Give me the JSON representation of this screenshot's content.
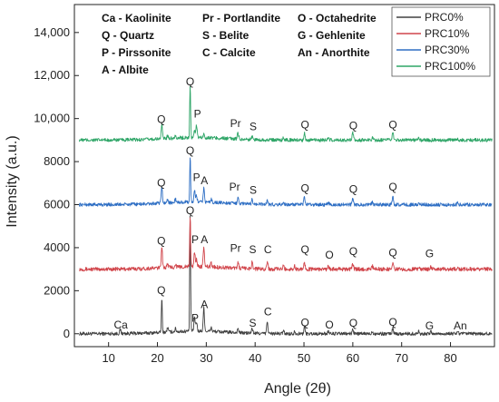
{
  "chart_data": {
    "type": "line",
    "xlabel": "Angle (2θ)",
    "ylabel": "Intensity (a.u.)",
    "xlim": [
      3,
      89
    ],
    "ylim": [
      -600,
      15300
    ],
    "x_ticks": [
      10,
      20,
      30,
      40,
      50,
      60,
      70,
      80
    ],
    "y_ticks": [
      {
        "value": 0,
        "label": "0"
      },
      {
        "value": 2000,
        "label": "2000"
      },
      {
        "value": 4000,
        "label": "4000"
      },
      {
        "value": 6000,
        "label": "6000"
      },
      {
        "value": 8000,
        "label": "8000"
      },
      {
        "value": 10000,
        "label": "10,000"
      },
      {
        "value": 12000,
        "label": "12,000"
      },
      {
        "value": 14000,
        "label": "14,000"
      }
    ],
    "legend": {
      "position": "top-right"
    },
    "phase_key": [
      [
        "Ca - Kaolinite",
        "Pr - Portlandite",
        "O - Octahedrite"
      ],
      [
        "Q - Quartz",
        "S - Belite",
        "G - Gehlenite"
      ],
      [
        "P - Pirssonite",
        "C - Calcite",
        "An - Anorthite"
      ],
      [
        "A - Albite",
        "",
        ""
      ]
    ],
    "series": [
      {
        "name": "PRC0%",
        "color": "#404040",
        "baseline": 0,
        "noise": 80,
        "peaks": [
          [
            12.4,
            180
          ],
          [
            20.9,
            1550
          ],
          [
            22.1,
            220
          ],
          [
            23.7,
            140
          ],
          [
            26.7,
            5400
          ],
          [
            27.6,
            650
          ],
          [
            28.0,
            450
          ],
          [
            29.5,
            1100
          ],
          [
            31.0,
            200
          ],
          [
            36.5,
            200
          ],
          [
            39.4,
            220
          ],
          [
            42.5,
            550
          ],
          [
            45.8,
            140
          ],
          [
            48.1,
            130
          ],
          [
            50.1,
            300
          ],
          [
            55.0,
            130
          ],
          [
            60.0,
            220
          ],
          [
            64.0,
            120
          ],
          [
            68.2,
            280
          ],
          [
            73.5,
            120
          ],
          [
            76.0,
            100
          ],
          [
            81.5,
            120
          ]
        ],
        "labels": [
          {
            "text": "Ca",
            "x": 12.5,
            "y": 250
          },
          {
            "text": "Q",
            "x": 20.8,
            "y": 1850
          },
          {
            "text": "Q",
            "x": 26.7,
            "y": 5550
          },
          {
            "text": "P",
            "x": 27.7,
            "y": 550
          },
          {
            "text": "A",
            "x": 29.6,
            "y": 1200
          },
          {
            "text": "S",
            "x": 39.5,
            "y": 320
          },
          {
            "text": "C",
            "x": 42.6,
            "y": 850
          },
          {
            "text": "Q",
            "x": 50.2,
            "y": 350
          },
          {
            "text": "O",
            "x": 55.2,
            "y": 250
          },
          {
            "text": "Q",
            "x": 60.1,
            "y": 330
          },
          {
            "text": "Q",
            "x": 68.2,
            "y": 380
          },
          {
            "text": "G",
            "x": 75.7,
            "y": 200
          },
          {
            "text": "An",
            "x": 82.0,
            "y": 200
          }
        ]
      },
      {
        "name": "PRC10%",
        "color": "#d1454b",
        "baseline": 3000,
        "noise": 90,
        "peaks": [
          [
            20.9,
            1000
          ],
          [
            22.1,
            200
          ],
          [
            23.7,
            150
          ],
          [
            26.7,
            2400
          ],
          [
            27.6,
            700
          ],
          [
            28.0,
            350
          ],
          [
            29.5,
            850
          ],
          [
            31.0,
            200
          ],
          [
            36.5,
            250
          ],
          [
            39.4,
            320
          ],
          [
            42.5,
            350
          ],
          [
            45.8,
            160
          ],
          [
            48.1,
            150
          ],
          [
            50.1,
            330
          ],
          [
            55.0,
            140
          ],
          [
            60.0,
            250
          ],
          [
            64.0,
            150
          ],
          [
            68.2,
            300
          ],
          [
            73.5,
            130
          ],
          [
            76.0,
            110
          ],
          [
            81.5,
            120
          ]
        ],
        "labels": [
          {
            "text": "Q",
            "x": 20.8,
            "y": 4150
          },
          {
            "text": "P",
            "x": 27.7,
            "y": 4200
          },
          {
            "text": "A",
            "x": 29.6,
            "y": 4200
          },
          {
            "text": "Pr",
            "x": 36.0,
            "y": 3800
          },
          {
            "text": "S",
            "x": 39.5,
            "y": 3750
          },
          {
            "text": "C",
            "x": 42.6,
            "y": 3750
          },
          {
            "text": "Q",
            "x": 50.2,
            "y": 3750
          },
          {
            "text": "O",
            "x": 55.2,
            "y": 3500
          },
          {
            "text": "Q",
            "x": 60.1,
            "y": 3650
          },
          {
            "text": "Q",
            "x": 68.2,
            "y": 3600
          },
          {
            "text": "G",
            "x": 75.7,
            "y": 3550
          }
        ]
      },
      {
        "name": "PRC30%",
        "color": "#2f6fc4",
        "baseline": 6000,
        "noise": 80,
        "peaks": [
          [
            20.9,
            700
          ],
          [
            22.1,
            180
          ],
          [
            23.7,
            150
          ],
          [
            26.7,
            2150
          ],
          [
            27.6,
            500
          ],
          [
            28.0,
            300
          ],
          [
            29.5,
            650
          ],
          [
            31.0,
            150
          ],
          [
            36.5,
            350
          ],
          [
            39.4,
            220
          ],
          [
            42.5,
            200
          ],
          [
            45.8,
            120
          ],
          [
            50.1,
            350
          ],
          [
            55.0,
            100
          ],
          [
            60.0,
            280
          ],
          [
            64.0,
            100
          ],
          [
            68.2,
            400
          ],
          [
            73.5,
            100
          ],
          [
            81.5,
            100
          ]
        ],
        "labels": [
          {
            "text": "Q",
            "x": 20.8,
            "y": 6850
          },
          {
            "text": "Q",
            "x": 26.7,
            "y": 8350
          },
          {
            "text": "P",
            "x": 28.0,
            "y": 7100
          },
          {
            "text": "A",
            "x": 29.6,
            "y": 6950
          },
          {
            "text": "Pr",
            "x": 35.8,
            "y": 6650
          },
          {
            "text": "S",
            "x": 39.6,
            "y": 6500
          },
          {
            "text": "Q",
            "x": 50.2,
            "y": 6600
          },
          {
            "text": "Q",
            "x": 60.1,
            "y": 6550
          },
          {
            "text": "Q",
            "x": 68.2,
            "y": 6650
          }
        ]
      },
      {
        "name": "PRC100%",
        "color": "#2ea567",
        "baseline": 9000,
        "noise": 80,
        "peaks": [
          [
            20.9,
            650
          ],
          [
            22.1,
            150
          ],
          [
            23.7,
            120
          ],
          [
            26.7,
            2450
          ],
          [
            27.6,
            300
          ],
          [
            28.0,
            600
          ],
          [
            29.5,
            150
          ],
          [
            36.5,
            300
          ],
          [
            39.4,
            150
          ],
          [
            45.8,
            120
          ],
          [
            50.1,
            350
          ],
          [
            55.0,
            100
          ],
          [
            60.0,
            320
          ],
          [
            64.0,
            100
          ],
          [
            68.2,
            350
          ],
          [
            73.5,
            90
          ],
          [
            81.5,
            80
          ]
        ],
        "labels": [
          {
            "text": "Q",
            "x": 20.8,
            "y": 9800
          },
          {
            "text": "Q",
            "x": 26.7,
            "y": 11550
          },
          {
            "text": "P",
            "x": 28.2,
            "y": 10050
          },
          {
            "text": "Pr",
            "x": 36.0,
            "y": 9600
          },
          {
            "text": "S",
            "x": 39.6,
            "y": 9450
          },
          {
            "text": "Q",
            "x": 50.2,
            "y": 9550
          },
          {
            "text": "Q",
            "x": 60.1,
            "y": 9500
          },
          {
            "text": "Q",
            "x": 68.2,
            "y": 9550
          }
        ]
      }
    ]
  }
}
